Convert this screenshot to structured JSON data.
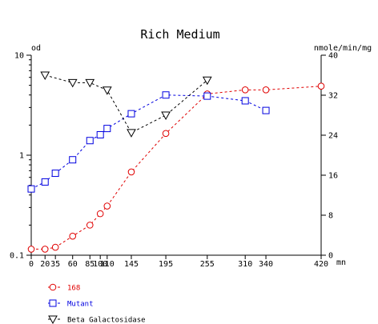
{
  "chart_data": {
    "type": "line",
    "title": "Rich Medium",
    "xlabel": "mn",
    "ylabel_left": "od",
    "ylabel_right": "nmole/min/mg",
    "y_left_scale": "log",
    "y_left_ticks": [
      "0.1",
      "1",
      "10"
    ],
    "y_left_lim": [
      0.1,
      10
    ],
    "y_right_ticks": [
      "0",
      "8",
      "16",
      "24",
      "32",
      "40"
    ],
    "y_right_lim": [
      0,
      40
    ],
    "x_ticks": [
      "0",
      "20",
      "35",
      "60",
      "85",
      "100",
      "110",
      "145",
      "195",
      "255",
      "310",
      "340",
      "420"
    ],
    "x_lim": [
      0,
      420
    ],
    "grid": false,
    "legend_position": "bottom-left",
    "series": [
      {
        "name": "168",
        "axis": "left",
        "color": "#e00000",
        "marker": "circle",
        "x": [
          0,
          20,
          35,
          60,
          85,
          100,
          110,
          145,
          195,
          255,
          310,
          340,
          420
        ],
        "y": [
          0.115,
          0.115,
          0.12,
          0.155,
          0.2,
          0.26,
          0.31,
          0.68,
          1.65,
          4.1,
          4.5,
          4.5,
          4.9
        ]
      },
      {
        "name": "Mutant",
        "axis": "left",
        "color": "#0000e0",
        "marker": "square",
        "x": [
          0,
          20,
          35,
          60,
          85,
          100,
          110,
          145,
          195,
          255,
          310,
          340
        ],
        "y": [
          0.46,
          0.54,
          0.66,
          0.9,
          1.4,
          1.6,
          1.85,
          2.6,
          4.0,
          3.9,
          3.5,
          2.8
        ]
      },
      {
        "name": "Beta Galactosidase",
        "axis": "right",
        "color": "#000000",
        "marker": "triangle-down",
        "x": [
          20,
          60,
          85,
          110,
          145,
          195,
          255
        ],
        "y": [
          36,
          34.5,
          34.5,
          33,
          24.5,
          28,
          35
        ]
      }
    ]
  }
}
